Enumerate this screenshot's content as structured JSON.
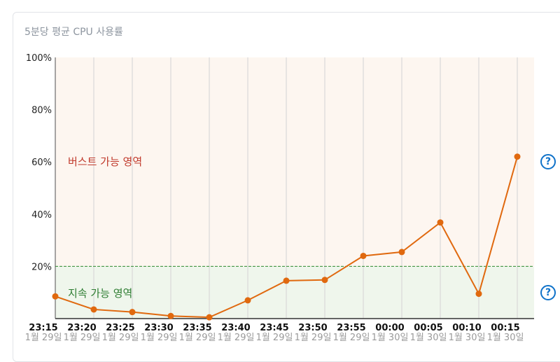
{
  "card": {
    "title": "5분당 평균 CPU 사용률"
  },
  "chart_data": {
    "type": "line",
    "title": "5분당 평균 CPU 사용률",
    "xlabel": "",
    "ylabel": "",
    "x": [
      "23:15",
      "23:20",
      "23:25",
      "23:30",
      "23:35",
      "23:40",
      "23:45",
      "23:50",
      "23:55",
      "00:00",
      "00:05",
      "00:10",
      "00:15"
    ],
    "x_date_labels": [
      "1월 29일",
      "1월 29일",
      "1월 29일",
      "1월 29일",
      "1월 29일",
      "1월 29일",
      "1월 29일",
      "1월 29일",
      "1월 29일",
      "1월 30일",
      "1월 30일",
      "1월 30일",
      "1월 30일"
    ],
    "series": [
      {
        "values": [
          8.5,
          3.5,
          2.5,
          1.0,
          0.5,
          7.0,
          14.5,
          14.8,
          24.0,
          25.5,
          36.8,
          9.5,
          62.0
        ],
        "color": "#e0690f"
      }
    ],
    "ylim": [
      0,
      100
    ],
    "yticks": [
      20,
      40,
      60,
      80,
      100
    ],
    "ytick_labels": [
      "20%",
      "40%",
      "60%",
      "80%",
      "100%"
    ],
    "threshold": 20,
    "threshold_color": "#2f8a2f",
    "grid": true,
    "regions": {
      "burst_label": "버스트 가능 영역",
      "burst_color": "#fdf6f0",
      "burst_text_color": "#c0392b",
      "sustained_label": "지속 가능 영역",
      "sustained_color": "#eff6ec",
      "sustained_text_color": "#2e7d32"
    }
  },
  "help": {
    "icon": "question-icon",
    "glyph": "?",
    "color": "#0f72c9"
  }
}
